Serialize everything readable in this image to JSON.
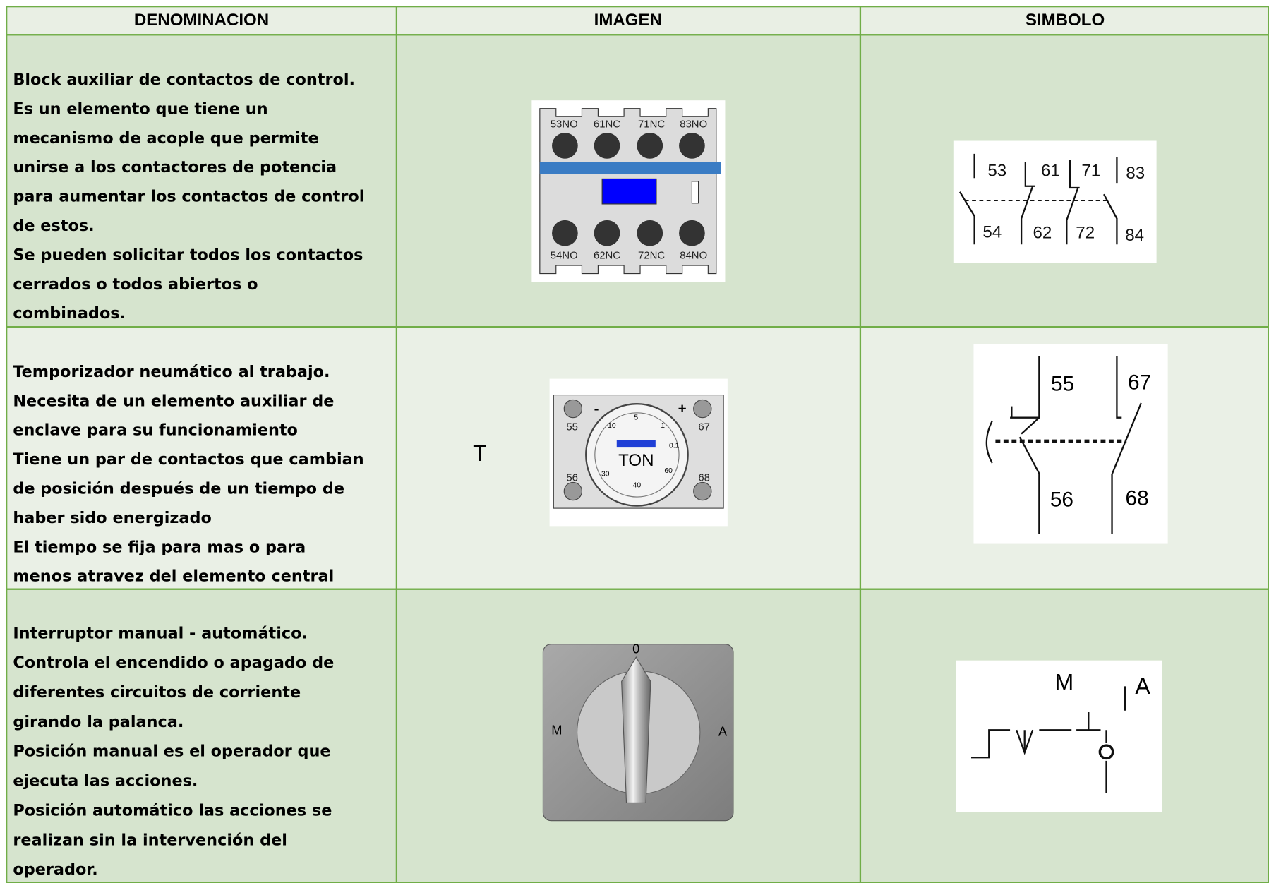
{
  "table": {
    "headers": [
      "DENOMINACION",
      "IMAGEN",
      "SIMBOLO"
    ],
    "rows": [
      {
        "description": [
          "Block auxiliar de contactos de control.",
          "Es un elemento que tiene un",
          "mecanismo de acople que permite",
          "unirse a los contactores de potencia",
          "para aumentar los contactos de control",
          "de estos.",
          "Se pueden solicitar todos los contactos",
          "cerrados o todos abiertos o",
          "combinados."
        ],
        "image_labels": [
          "53NO",
          "61NC",
          "71NC",
          "83NO",
          "54NO",
          "62NC",
          "72NC",
          "84NO"
        ],
        "symbol_labels": [
          "53",
          "61",
          "71",
          "83",
          "54",
          "62",
          "72",
          "84"
        ]
      },
      {
        "description": [
          "Temporizador neumático al trabajo.",
          "Necesita de un elemento auxiliar de",
          "enclave para su funcionamiento",
          "Tiene un par de contactos que cambian",
          "de posición después de un tiempo de",
          "haber sido energizado",
          "El tiempo se fija para mas o para",
          "menos atravez del elemento central"
        ],
        "image_caption": "T",
        "image_labels": [
          "55",
          "67",
          "56",
          "68",
          "-",
          "+",
          "TON",
          "5",
          "10",
          "1",
          "0.1",
          "30",
          "40",
          "60"
        ],
        "symbol_labels": [
          "55",
          "67",
          "56",
          "68"
        ]
      },
      {
        "description": [
          "Interruptor manual  - automático.",
          "Controla el encendido o apagado de",
          "diferentes circuitos de corriente",
          "girando la palanca.",
          "Posición manual es el operador que",
          "ejecuta las acciones.",
          "Posición automático las acciones se",
          "realizan sin la intervención del",
          "operador."
        ],
        "image_labels": [
          "0",
          "M",
          "A"
        ],
        "symbol_labels": [
          "M",
          "A"
        ]
      }
    ]
  }
}
